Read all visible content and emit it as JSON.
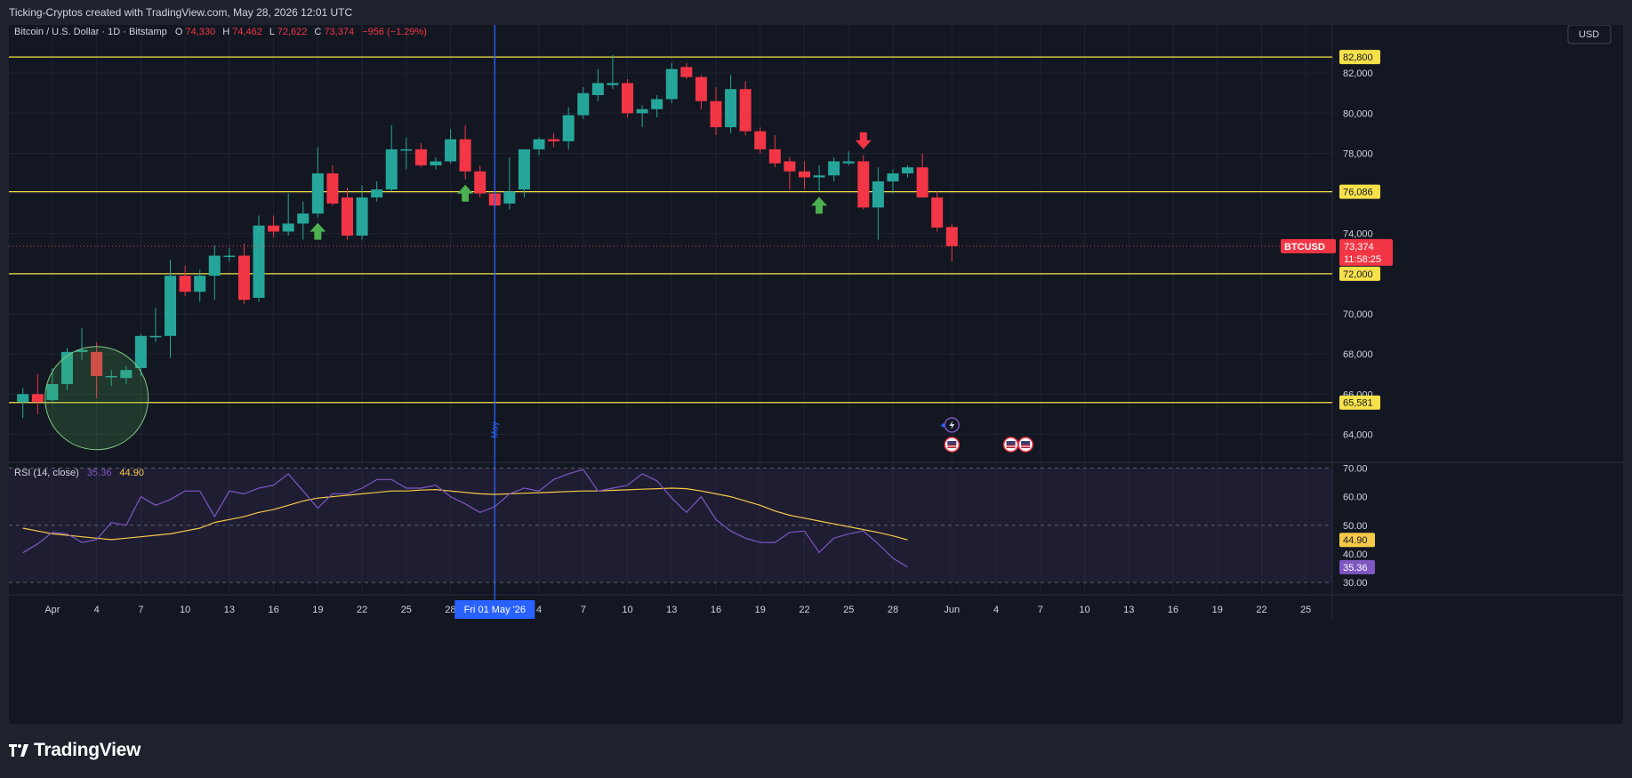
{
  "header": {
    "title": "Ticking-Cryptos created with TradingView.com, May 28, 2026 12:01 UTC"
  },
  "symbol": {
    "name": "Bitcoin / U.S. Dollar · 1D · Bitstamp",
    "o_label": "O",
    "o": "74,330",
    "h_label": "H",
    "h": "74,462",
    "l_label": "L",
    "l": "72,622",
    "c_label": "C",
    "c": "73,374",
    "change": "−956 (−1.29%)"
  },
  "currency_button": "USD",
  "price_label": {
    "ticker": "BTCUSD",
    "price": "73,374",
    "countdown": "11:58:25"
  },
  "levels": [
    {
      "label": "82,800",
      "value": 82800
    },
    {
      "label": "76,086",
      "value": 76086
    },
    {
      "label": "72,000",
      "value": 72000
    },
    {
      "label": "65,581",
      "value": 65581
    }
  ],
  "price_axis": {
    "min": 62600,
    "max": 84400,
    "ticks": [
      "64,000",
      "66,000",
      "68,000",
      "70,000",
      "72,000",
      "74,000",
      "76,000",
      "78,000",
      "80,000",
      "82,000"
    ]
  },
  "rsi": {
    "title": "RSI (14, close)",
    "rsi_value": "35.36",
    "ma_value": "44.90",
    "ticks": [
      "30.00",
      "40.00",
      "50.00",
      "60.00",
      "70.00"
    ],
    "min": 26,
    "max": 72,
    "band": [
      30,
      70
    ],
    "colors": {
      "rsi": "#7e57c2",
      "ma": "#f7c948"
    },
    "rsi_values": [
      40.4,
      43.5,
      47.5,
      47,
      44,
      45,
      51,
      50,
      60,
      57,
      59,
      62,
      62,
      53,
      62,
      61,
      63,
      64,
      68,
      62,
      56,
      61,
      61,
      63,
      66,
      66,
      63,
      63,
      64,
      60,
      57.5,
      54.5,
      56.5,
      61,
      63,
      62,
      66,
      68,
      69.5,
      62,
      63,
      64,
      68,
      65.5,
      59.5,
      54.5,
      60,
      52,
      48,
      45.5,
      44,
      44,
      47.5,
      48,
      40.5,
      45.5,
      47,
      48,
      43.5,
      38.5,
      35.36
    ],
    "ma_values": [
      49,
      48,
      47,
      46.5,
      46,
      45.5,
      45,
      45.5,
      46,
      46.5,
      47,
      48,
      49,
      51,
      52,
      53,
      54.5,
      55.5,
      57,
      58.5,
      59.5,
      60,
      60.5,
      61,
      61.5,
      62,
      62,
      62.3,
      62.5,
      62,
      61.5,
      61,
      60.8,
      61,
      61.2,
      61.4,
      61.6,
      61.8,
      62,
      62,
      62.2,
      62.4,
      62.6,
      62.8,
      63,
      62.8,
      62,
      61,
      60,
      58.5,
      57,
      55,
      53.5,
      52.5,
      51.5,
      50.5,
      49.5,
      48.5,
      47.5,
      46.3,
      44.9
    ]
  },
  "date_axis": {
    "labels": [
      "Apr",
      "4",
      "7",
      "10",
      "13",
      "16",
      "19",
      "22",
      "25",
      "28",
      "4",
      "7",
      "10",
      "13",
      "16",
      "19",
      "22",
      "25",
      "28",
      "Jun",
      "4",
      "7",
      "10",
      "13",
      "16",
      "19",
      "22",
      "25"
    ],
    "label_days": [
      1,
      4,
      7,
      10,
      13,
      16,
      19,
      22,
      25,
      28,
      34,
      37,
      40,
      43,
      46,
      49,
      52,
      55,
      58,
      62,
      65,
      68,
      71,
      74,
      77,
      80,
      83,
      86
    ],
    "cursor_label": "Fri 01 May '26",
    "cursor_day": 31,
    "month_marker": "May"
  },
  "annotations": {
    "up_arrows_day": [
      19,
      29,
      53
    ],
    "down_arrows_day": [
      56
    ],
    "circle_center_day": 4,
    "circle_center_price": 65800
  },
  "colors": {
    "up": "#26a69a",
    "down": "#f23645",
    "level": "#f7e14a",
    "cursor": "#2962ff",
    "arrow_up": "#4caf50",
    "arrow_down": "#f23645",
    "background": "#131722"
  },
  "chart_data": {
    "type": "candlestick",
    "title": "Bitcoin / U.S. Dollar · 1D · Bitstamp",
    "x_unit": "day index (1 = Apr 1, 2026)",
    "ylim": [
      62600,
      84400
    ],
    "candles": [
      {
        "d": -1,
        "o": 65600,
        "h": 66300,
        "l": 64800,
        "c": 66000
      },
      {
        "d": 0,
        "o": 66000,
        "h": 67000,
        "l": 65000,
        "c": 65600
      },
      {
        "d": 1,
        "o": 65700,
        "h": 67300,
        "l": 65500,
        "c": 66500
      },
      {
        "d": 2,
        "o": 66500,
        "h": 68300,
        "l": 66200,
        "c": 68100
      },
      {
        "d": 3,
        "o": 68100,
        "h": 69300,
        "l": 67700,
        "c": 68200
      },
      {
        "d": 4,
        "o": 68100,
        "h": 68600,
        "l": 65800,
        "c": 66900
      },
      {
        "d": 5,
        "o": 66900,
        "h": 67200,
        "l": 66400,
        "c": 66900
      },
      {
        "d": 6,
        "o": 66800,
        "h": 67400,
        "l": 66500,
        "c": 67200
      },
      {
        "d": 7,
        "o": 67300,
        "h": 69000,
        "l": 66900,
        "c": 68900
      },
      {
        "d": 8,
        "o": 68900,
        "h": 70300,
        "l": 68600,
        "c": 68900
      },
      {
        "d": 9,
        "o": 68900,
        "h": 72700,
        "l": 67800,
        "c": 71900
      },
      {
        "d": 10,
        "o": 71900,
        "h": 72400,
        "l": 70900,
        "c": 71100
      },
      {
        "d": 11,
        "o": 71100,
        "h": 72200,
        "l": 70600,
        "c": 71900
      },
      {
        "d": 12,
        "o": 71900,
        "h": 73400,
        "l": 70700,
        "c": 72900
      },
      {
        "d": 13,
        "o": 72900,
        "h": 73300,
        "l": 72600,
        "c": 72900
      },
      {
        "d": 14,
        "o": 72900,
        "h": 73500,
        "l": 70500,
        "c": 70700
      },
      {
        "d": 15,
        "o": 70800,
        "h": 74900,
        "l": 70600,
        "c": 74400
      },
      {
        "d": 16,
        "o": 74400,
        "h": 74900,
        "l": 73800,
        "c": 74100
      },
      {
        "d": 17,
        "o": 74100,
        "h": 76000,
        "l": 73900,
        "c": 74500
      },
      {
        "d": 18,
        "o": 74500,
        "h": 75600,
        "l": 73700,
        "c": 75000
      },
      {
        "d": 19,
        "o": 75000,
        "h": 78300,
        "l": 74800,
        "c": 77000
      },
      {
        "d": 20,
        "o": 77000,
        "h": 77400,
        "l": 75400,
        "c": 75500
      },
      {
        "d": 21,
        "o": 75800,
        "h": 76300,
        "l": 73700,
        "c": 73900
      },
      {
        "d": 22,
        "o": 73900,
        "h": 76400,
        "l": 73700,
        "c": 75800
      },
      {
        "d": 23,
        "o": 75800,
        "h": 76600,
        "l": 75600,
        "c": 76200
      },
      {
        "d": 24,
        "o": 76200,
        "h": 79400,
        "l": 76100,
        "c": 78200
      },
      {
        "d": 25,
        "o": 78200,
        "h": 78800,
        "l": 77200,
        "c": 78200
      },
      {
        "d": 26,
        "o": 78200,
        "h": 78500,
        "l": 77300,
        "c": 77400
      },
      {
        "d": 27,
        "o": 77400,
        "h": 77800,
        "l": 77200,
        "c": 77600
      },
      {
        "d": 28,
        "o": 77600,
        "h": 79200,
        "l": 77500,
        "c": 78700
      },
      {
        "d": 29,
        "o": 78700,
        "h": 79400,
        "l": 76700,
        "c": 77100
      },
      {
        "d": 30,
        "o": 77100,
        "h": 77400,
        "l": 75800,
        "c": 76000
      },
      {
        "d": 31,
        "o": 76000,
        "h": 76600,
        "l": 74800,
        "c": 75400
      },
      {
        "d": 32,
        "o": 75500,
        "h": 77800,
        "l": 75200,
        "c": 76100
      },
      {
        "d": 33,
        "o": 76200,
        "h": 78200,
        "l": 75800,
        "c": 78200
      },
      {
        "d": 34,
        "o": 78200,
        "h": 78800,
        "l": 77900,
        "c": 78700
      },
      {
        "d": 35,
        "o": 78700,
        "h": 79000,
        "l": 78300,
        "c": 78600
      },
      {
        "d": 36,
        "o": 78600,
        "h": 80300,
        "l": 78200,
        "c": 79900
      },
      {
        "d": 37,
        "o": 79900,
        "h": 81300,
        "l": 79700,
        "c": 81000
      },
      {
        "d": 38,
        "o": 80900,
        "h": 82200,
        "l": 80600,
        "c": 81500
      },
      {
        "d": 39,
        "o": 81400,
        "h": 82900,
        "l": 81200,
        "c": 81500
      },
      {
        "d": 40,
        "o": 81500,
        "h": 81700,
        "l": 79800,
        "c": 80000
      },
      {
        "d": 41,
        "o": 80000,
        "h": 80400,
        "l": 79300,
        "c": 80200
      },
      {
        "d": 42,
        "o": 80200,
        "h": 80900,
        "l": 79800,
        "c": 80700
      },
      {
        "d": 43,
        "o": 80700,
        "h": 82500,
        "l": 80500,
        "c": 82200
      },
      {
        "d": 44,
        "o": 82300,
        "h": 82500,
        "l": 81700,
        "c": 81800
      },
      {
        "d": 45,
        "o": 81800,
        "h": 81900,
        "l": 80200,
        "c": 80600
      },
      {
        "d": 46,
        "o": 80600,
        "h": 81300,
        "l": 78900,
        "c": 79300
      },
      {
        "d": 47,
        "o": 79300,
        "h": 81900,
        "l": 79000,
        "c": 81200
      },
      {
        "d": 48,
        "o": 81200,
        "h": 81600,
        "l": 78900,
        "c": 79100
      },
      {
        "d": 49,
        "o": 79100,
        "h": 79300,
        "l": 78000,
        "c": 78200
      },
      {
        "d": 50,
        "o": 78200,
        "h": 78900,
        "l": 77300,
        "c": 77500
      },
      {
        "d": 51,
        "o": 77600,
        "h": 77800,
        "l": 76200,
        "c": 77100
      },
      {
        "d": 52,
        "o": 77100,
        "h": 77600,
        "l": 76200,
        "c": 76800
      },
      {
        "d": 53,
        "o": 76800,
        "h": 77400,
        "l": 76100,
        "c": 76900
      },
      {
        "d": 54,
        "o": 76900,
        "h": 77800,
        "l": 76600,
        "c": 77600
      },
      {
        "d": 55,
        "o": 77500,
        "h": 78100,
        "l": 77400,
        "c": 77600
      },
      {
        "d": 56,
        "o": 77600,
        "h": 77900,
        "l": 75200,
        "c": 75300
      },
      {
        "d": 57,
        "o": 75300,
        "h": 77300,
        "l": 73700,
        "c": 76600
      },
      {
        "d": 58,
        "o": 76600,
        "h": 77200,
        "l": 76000,
        "c": 77000
      },
      {
        "d": 59,
        "o": 77000,
        "h": 77400,
        "l": 76800,
        "c": 77300
      },
      {
        "d": 60,
        "o": 77300,
        "h": 78000,
        "l": 75800,
        "c": 75800
      },
      {
        "d": 61,
        "o": 75800,
        "h": 76100,
        "l": 74100,
        "c": 74300
      },
      {
        "d": 62,
        "o": 74330,
        "h": 74462,
        "l": 72622,
        "c": 73374
      }
    ],
    "rsi_series": {
      "name": "RSI (14, close)",
      "last": 35.36
    },
    "rsi_ma_series": {
      "last": 44.9
    },
    "horizontal_levels": [
      82800,
      76086,
      72000,
      65581
    ]
  }
}
